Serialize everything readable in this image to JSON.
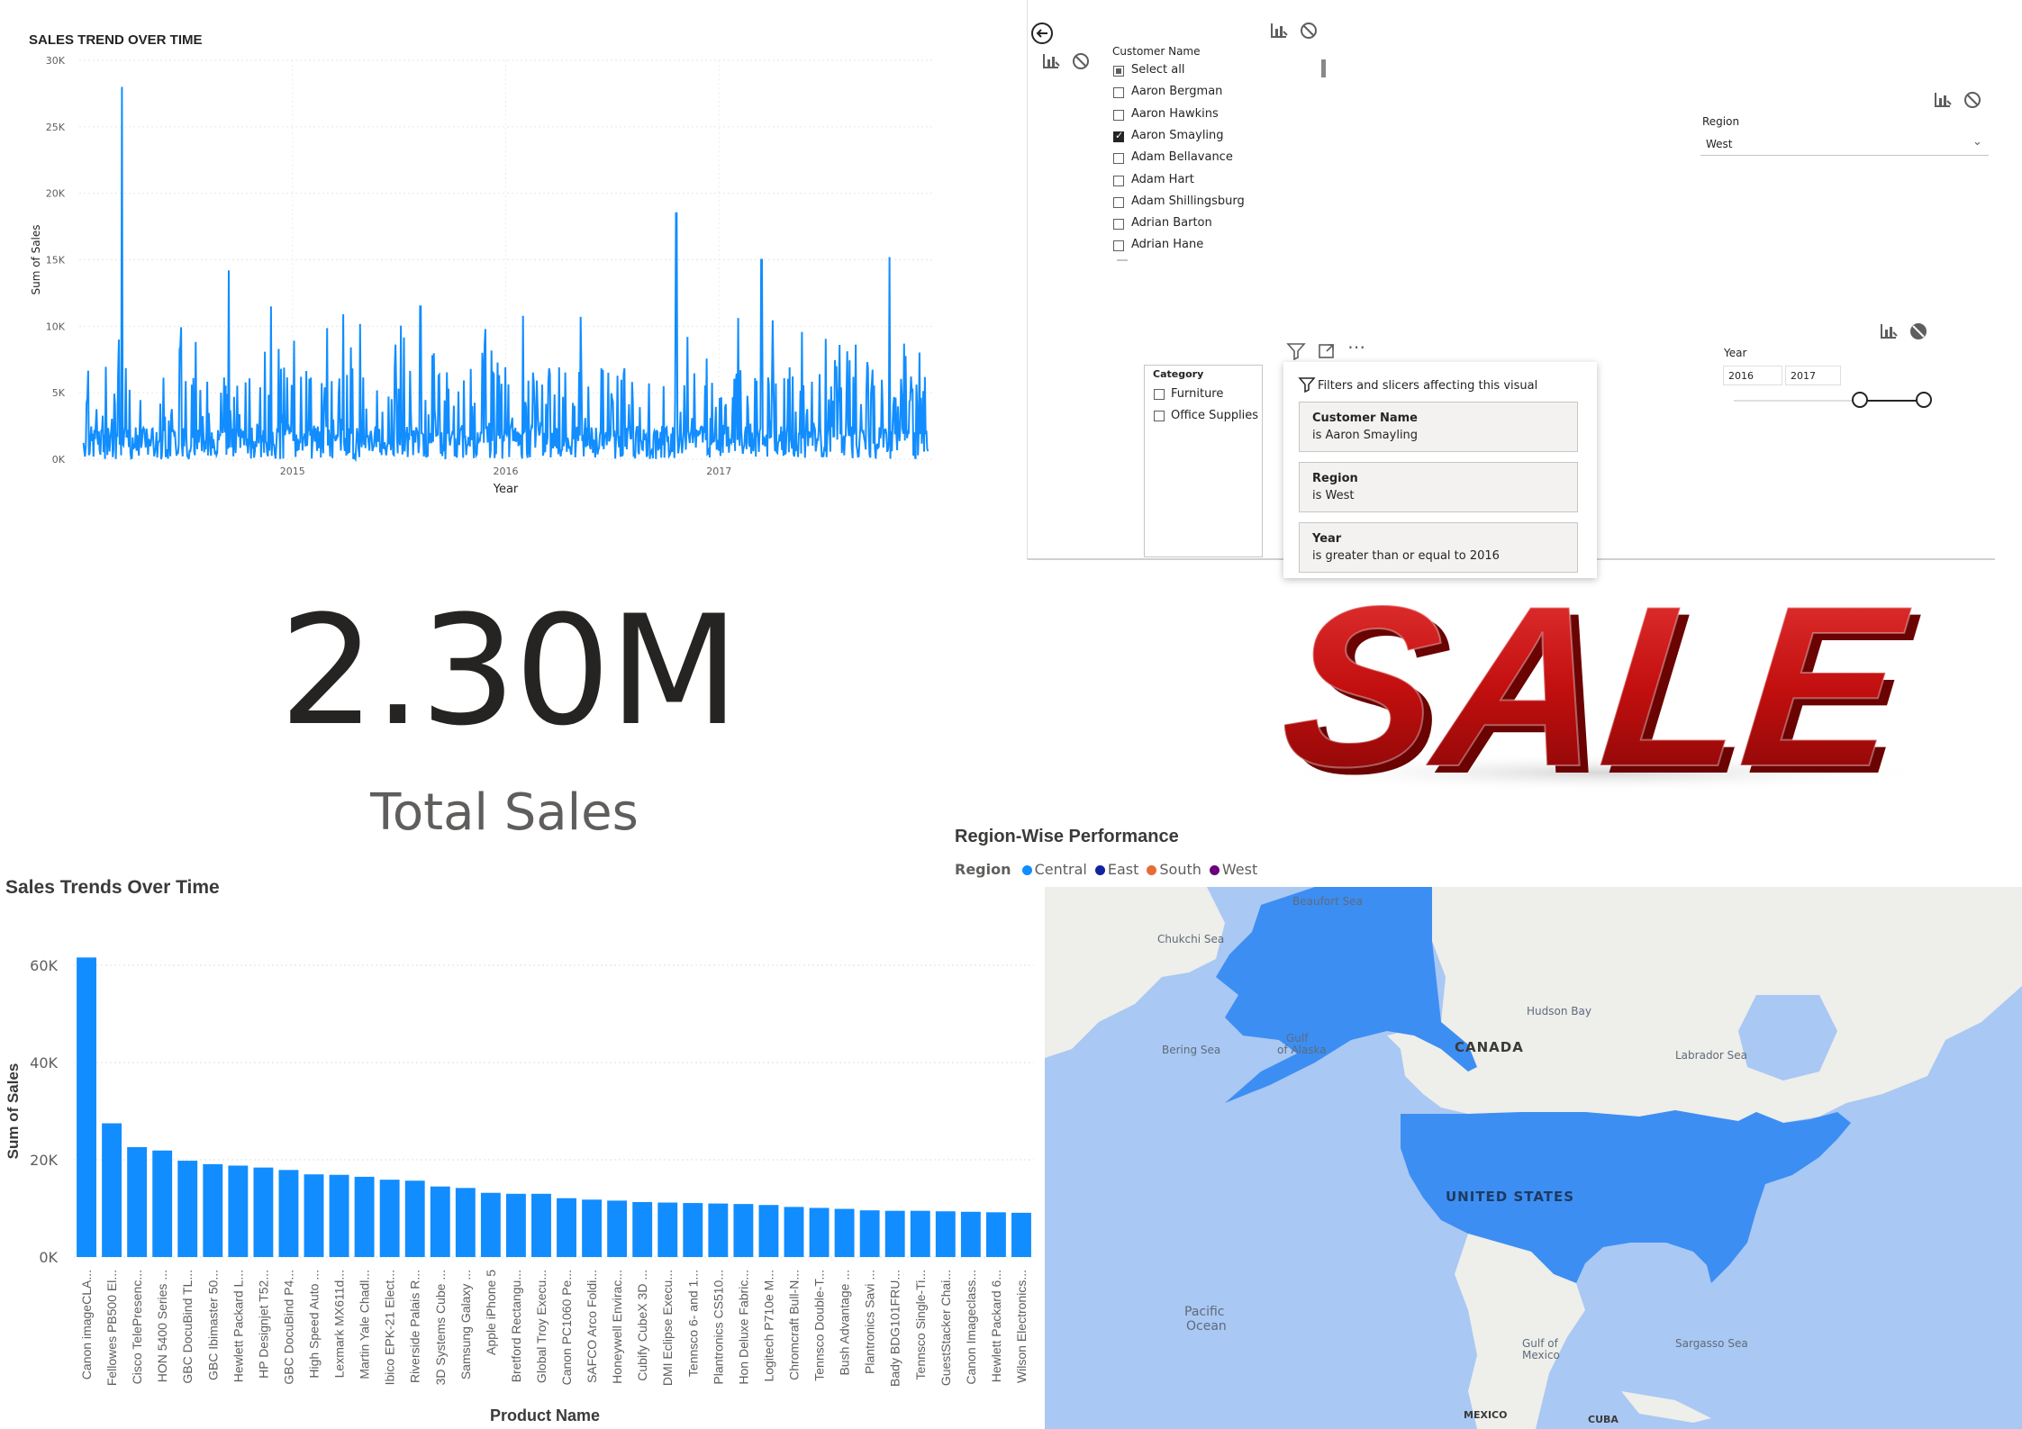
{
  "line_chart": {
    "title": "SALES TREND OVER TIME",
    "ylabel": "Sum of Sales",
    "xlabel": "Year",
    "y_ticks": [
      "0K",
      "5K",
      "10K",
      "15K",
      "20K",
      "25K",
      "30K"
    ],
    "x_ticks": [
      "2015",
      "2016",
      "2017"
    ]
  },
  "slicer": {
    "customer_title": "Customer Name",
    "customers": [
      {
        "label": "Select all",
        "state": "partial"
      },
      {
        "label": "Aaron Bergman",
        "state": "unchecked"
      },
      {
        "label": "Aaron Hawkins",
        "state": "unchecked"
      },
      {
        "label": "Aaron Smayling",
        "state": "checked"
      },
      {
        "label": "Adam Bellavance",
        "state": "unchecked"
      },
      {
        "label": "Adam Hart",
        "state": "unchecked"
      },
      {
        "label": "Adam Shillingsburg",
        "state": "unchecked"
      },
      {
        "label": "Adrian Barton",
        "state": "unchecked"
      },
      {
        "label": "Adrian Hane",
        "state": "unchecked"
      }
    ],
    "region_title": "Region",
    "region_value": "West",
    "category_title": "Category",
    "categories": [
      "Furniture",
      "Office Supplies"
    ],
    "year_title": "Year",
    "year_from": "2016",
    "year_to": "2017",
    "filter_popup_title": "Filters and slicers affecting this visual",
    "filters": [
      {
        "title": "Customer Name",
        "value": "is Aaron Smayling"
      },
      {
        "title": "Region",
        "value": "is West"
      },
      {
        "title": "Year",
        "value": "is greater than or equal to 2016"
      }
    ]
  },
  "kpi": {
    "value": "2.30M",
    "label": "Total Sales"
  },
  "banner": {
    "text": "SALE"
  },
  "map": {
    "title": "Region-Wise Performance",
    "legend_title": "Region",
    "legend": [
      {
        "name": "Central",
        "color": "#118dff"
      },
      {
        "name": "East",
        "color": "#12239e"
      },
      {
        "name": "South",
        "color": "#e66c37"
      },
      {
        "name": "West",
        "color": "#6b007b"
      }
    ],
    "labels": {
      "beaufort": "Beaufort Sea",
      "chukchi": "Chukchi Sea",
      "bering": "Bering Sea",
      "gulf_alaska_1": "Gulf",
      "gulf_alaska_2": "of Alaska",
      "canada": "CANADA",
      "hudson": "Hudson Bay",
      "labrador": "Labrador Sea",
      "usa": "UNITED STATES",
      "pacific_1": "Pacific",
      "pacific_2": "Ocean",
      "gulf_mexico_1": "Gulf of",
      "gulf_mexico_2": "Mexico",
      "sargasso": "Sargasso Sea",
      "mexico": "MEXICO",
      "cuba": "CUBA"
    }
  },
  "chart_data": [
    {
      "type": "line",
      "title": "SALES TREND OVER TIME",
      "xlabel": "Year",
      "ylabel": "Sum of Sales",
      "ylim": [
        0,
        30000
      ],
      "xlim": [
        2014,
        2018
      ],
      "grid": true,
      "peaks": [
        {
          "x": 2014.2,
          "y": 28000
        },
        {
          "x": 2014.7,
          "y": 14200
        },
        {
          "x": 2014.9,
          "y": 11500
        },
        {
          "x": 2015.6,
          "y": 11500
        },
        {
          "x": 2016.8,
          "y": 18500
        },
        {
          "x": 2017.2,
          "y": 15000
        },
        {
          "x": 2017.8,
          "y": 15200
        }
      ],
      "baseline_range": [
        0,
        5000
      ]
    },
    {
      "type": "bar",
      "title": "Sales Trends Over Time",
      "xlabel": "Product Name",
      "ylabel": "Sum of Sales",
      "ylim": [
        0,
        60000
      ],
      "y_ticks": [
        "0K",
        "20K",
        "40K",
        "60K"
      ],
      "categories": [
        "Canon imageCLA...",
        "Fellowes PB500 El...",
        "Cisco TelePresenc...",
        "HON 5400 Series ...",
        "GBC DocuBind TL...",
        "GBC Ibimaster 50...",
        "Hewlett Packard L...",
        "HP Designjet T52...",
        "GBC DocuBind P4...",
        "High Speed Auto ...",
        "Lexmark MX611d...",
        "Martin Yale Chadl...",
        "Ibico EPK-21 Elect...",
        "Riverside Palais R...",
        "3D Systems Cube ...",
        "Samsung Galaxy ...",
        "Apple iPhone 5",
        "Bretford Rectangu...",
        "Global Troy Execu...",
        "Canon PC1060 Pe...",
        "SAFCO Arco Foldi...",
        "Honeywell Envirac...",
        "Cubify CubeX 3D ...",
        "DMI Eclipse Execu...",
        "Tennsco 6- and 1...",
        "Plantronics CS510...",
        "Hon Deluxe Fabric...",
        "Logitech P710e M...",
        "Chromcraft Bull-N...",
        "Tennsco Double-T...",
        "Bush Advantage ...",
        "Plantronics Savi ...",
        "Bady BDG101FRU...",
        "Tennsco Single-Ti...",
        "GuestStacker Chai...",
        "Canon Imageclass...",
        "Hewlett Packard 6...",
        "Wilson Electronics..."
      ],
      "values": [
        61600,
        27500,
        22600,
        21900,
        19800,
        19100,
        18800,
        18400,
        17900,
        17000,
        16900,
        16500,
        15900,
        15700,
        14500,
        14200,
        13200,
        13000,
        13000,
        12100,
        11800,
        11600,
        11300,
        11200,
        11100,
        11000,
        10900,
        10700,
        10300,
        10100,
        9900,
        9600,
        9500,
        9500,
        9400,
        9300,
        9200,
        9100
      ]
    }
  ]
}
